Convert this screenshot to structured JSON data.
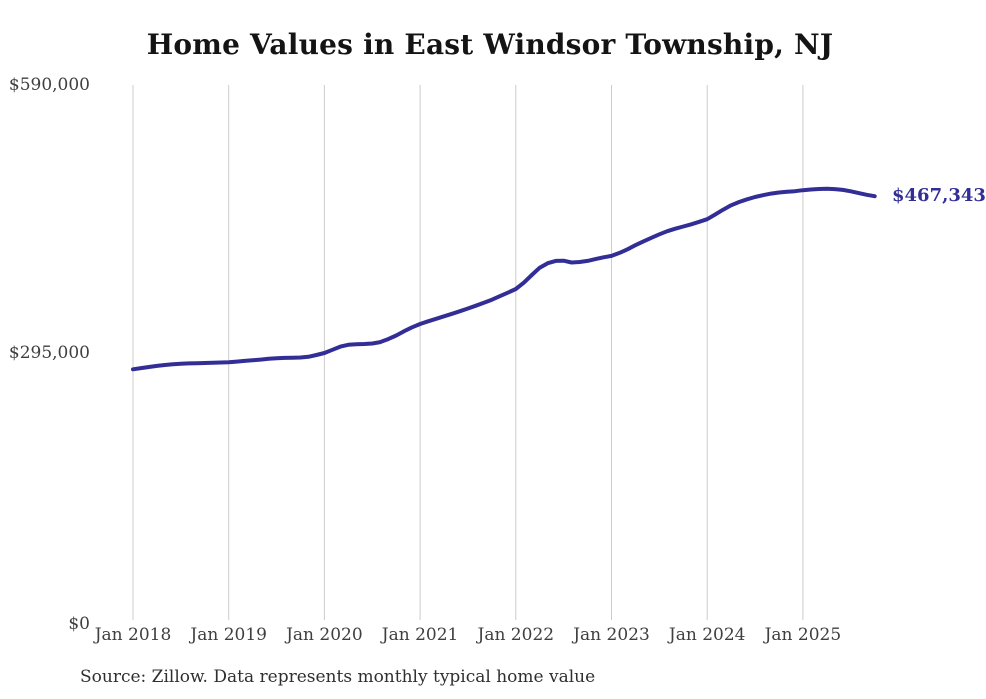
{
  "page": {
    "title": "Home Values in East Windsor Township, NJ",
    "end_label": "$467,343",
    "source_note": "Source: Zillow. Data represents monthly typical home value"
  },
  "chart_data": {
    "type": "line",
    "title": "Home Values in East Windsor Township, NJ",
    "series_name": "Monthly typical home value",
    "ylim": [
      0,
      590000
    ],
    "grid": "vertical-only",
    "legend": "none",
    "line_color": "#322e96",
    "gridline_color": "#cccccc",
    "last_value_label": "$467,343",
    "y_ticks": [
      {
        "label": "$590,000",
        "value": 590000
      },
      {
        "label": "$295,000",
        "value": 295000
      },
      {
        "label": "$0",
        "value": 0
      }
    ],
    "x_ticks": [
      {
        "label": "Jan 2018",
        "month_index": 0
      },
      {
        "label": "Jan 2019",
        "month_index": 12
      },
      {
        "label": "Jan 2020",
        "month_index": 24
      },
      {
        "label": "Jan 2021",
        "month_index": 36
      },
      {
        "label": "Jan 2022",
        "month_index": 48
      },
      {
        "label": "Jan 2023",
        "month_index": 60
      },
      {
        "label": "Jan 2024",
        "month_index": 72
      },
      {
        "label": "Jan 2025",
        "month_index": 84
      }
    ],
    "x": [
      "2018-01",
      "2018-02",
      "2018-03",
      "2018-04",
      "2018-05",
      "2018-06",
      "2018-07",
      "2018-08",
      "2018-09",
      "2018-10",
      "2018-11",
      "2018-12",
      "2019-01",
      "2019-02",
      "2019-03",
      "2019-04",
      "2019-05",
      "2019-06",
      "2019-07",
      "2019-08",
      "2019-09",
      "2019-10",
      "2019-11",
      "2019-12",
      "2020-01",
      "2020-02",
      "2020-03",
      "2020-04",
      "2020-05",
      "2020-06",
      "2020-07",
      "2020-08",
      "2020-09",
      "2020-10",
      "2020-11",
      "2020-12",
      "2021-01",
      "2021-02",
      "2021-03",
      "2021-04",
      "2021-05",
      "2021-06",
      "2021-07",
      "2021-08",
      "2021-09",
      "2021-10",
      "2021-11",
      "2021-12",
      "2022-01",
      "2022-02",
      "2022-03",
      "2022-04",
      "2022-05",
      "2022-06",
      "2022-07",
      "2022-08",
      "2022-09",
      "2022-10",
      "2022-11",
      "2022-12",
      "2023-01",
      "2023-02",
      "2023-03",
      "2023-04",
      "2023-05",
      "2023-06",
      "2023-07",
      "2023-08",
      "2023-09",
      "2023-10",
      "2023-11",
      "2023-12",
      "2024-01",
      "2024-02",
      "2024-03",
      "2024-04",
      "2024-05",
      "2024-06",
      "2024-07",
      "2024-08",
      "2024-09",
      "2024-10",
      "2024-11",
      "2024-12",
      "2025-01",
      "2025-02",
      "2025-03",
      "2025-04",
      "2025-05",
      "2025-06",
      "2025-07",
      "2025-08",
      "2025-09",
      "2025-10"
    ],
    "values": [
      276500,
      277800,
      279000,
      280200,
      281200,
      282000,
      282500,
      283000,
      283200,
      283400,
      283700,
      284000,
      284300,
      285000,
      285700,
      286400,
      287200,
      288000,
      288700,
      289100,
      289300,
      289500,
      290300,
      292200,
      294500,
      298000,
      301500,
      303500,
      304200,
      304400,
      304900,
      306500,
      309800,
      313800,
      318500,
      322800,
      326400,
      329400,
      332200,
      334900,
      337700,
      340500,
      343500,
      346600,
      349800,
      353200,
      357100,
      361000,
      365000,
      372000,
      380500,
      388500,
      393500,
      396000,
      396200,
      394300,
      394800,
      396000,
      398000,
      400000,
      401500,
      404800,
      408800,
      413300,
      417500,
      421500,
      425400,
      428800,
      431500,
      433900,
      436400,
      439100,
      442000,
      447200,
      452500,
      457300,
      461000,
      464000,
      466500,
      468500,
      470200,
      471400,
      472300,
      472900,
      474000,
      474800,
      475300,
      475500,
      475200,
      474300,
      472800,
      470800,
      468900,
      467343
    ]
  }
}
